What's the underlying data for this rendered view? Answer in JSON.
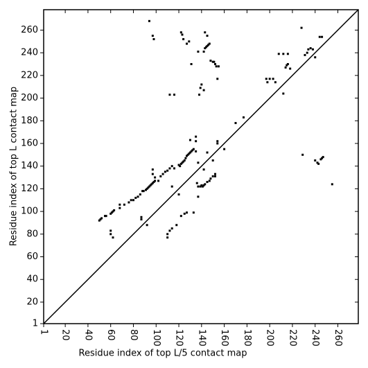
{
  "chart_data": {
    "type": "scatter",
    "xlabel": "Residue index of top L/5 contact map",
    "ylabel": "Residue index of top L contact map",
    "xlim": [
      1,
      278
    ],
    "ylim": [
      1,
      278
    ],
    "xticks": [
      1,
      20,
      40,
      60,
      80,
      100,
      120,
      140,
      160,
      180,
      200,
      220,
      240,
      260
    ],
    "yticks": [
      1,
      20,
      40,
      60,
      80,
      100,
      120,
      140,
      160,
      180,
      200,
      220,
      240,
      260
    ],
    "color": "#000000",
    "diagonal": true,
    "x": [
      50,
      51,
      52,
      55,
      56,
      60,
      61,
      62,
      63,
      60,
      60,
      62,
      68,
      68,
      72,
      76,
      78,
      80,
      82,
      84,
      86,
      88,
      89,
      91,
      92,
      93,
      94,
      95,
      96,
      97,
      98,
      99,
      97,
      97,
      99,
      102,
      104,
      106,
      108,
      110,
      112,
      114,
      116,
      87,
      87,
      92,
      110,
      110,
      112,
      114,
      118,
      114,
      120,
      125,
      122,
      127,
      133,
      120,
      121,
      122,
      123,
      124,
      125,
      126,
      127,
      128,
      129,
      130,
      131,
      132,
      133,
      130,
      135,
      135,
      135,
      137,
      142,
      145,
      150,
      154,
      154,
      160,
      170,
      177,
      136,
      137,
      137,
      139,
      140,
      141,
      142,
      143,
      145,
      147,
      148,
      150,
      152,
      152,
      138,
      139,
      140,
      142,
      112,
      116,
      131,
      137,
      142,
      143,
      144,
      145,
      146,
      147,
      148,
      150,
      151,
      152,
      153,
      154,
      155,
      143,
      145,
      122,
      123,
      124,
      127,
      129,
      97,
      98,
      94,
      197,
      200,
      203,
      205,
      198,
      208,
      212,
      216,
      212,
      214,
      215,
      216,
      218,
      228,
      231,
      233,
      234,
      236,
      238,
      240,
      244,
      246,
      229,
      240,
      242,
      243,
      245,
      246,
      247,
      255
    ],
    "y": [
      92,
      93,
      94,
      96,
      96,
      98,
      99,
      100,
      101,
      83,
      80,
      77,
      103,
      106,
      106,
      108,
      110,
      110,
      112,
      113,
      115,
      118,
      118,
      119,
      120,
      121,
      122,
      123,
      124,
      125,
      126,
      127,
      133,
      137,
      130,
      127,
      131,
      133,
      135,
      136,
      138,
      140,
      138,
      95,
      93,
      88,
      80,
      77,
      83,
      85,
      88,
      122,
      115,
      98,
      96,
      99,
      99,
      141,
      140,
      142,
      143,
      144,
      145,
      147,
      149,
      150,
      151,
      152,
      153,
      154,
      155,
      163,
      166,
      162,
      153,
      143,
      137,
      152,
      145,
      162,
      160,
      155,
      178,
      183,
      125,
      122,
      113,
      122,
      123,
      122,
      123,
      124,
      126,
      127,
      129,
      131,
      133,
      131,
      203,
      209,
      212,
      207,
      203,
      203,
      230,
      241,
      241,
      244,
      245,
      246,
      247,
      248,
      233,
      232,
      232,
      230,
      228,
      217,
      228,
      258,
      255,
      258,
      256,
      252,
      248,
      250,
      255,
      252,
      268,
      217,
      217,
      217,
      214,
      214,
      239,
      239,
      239,
      204,
      227,
      229,
      230,
      226,
      262,
      238,
      240,
      243,
      244,
      243,
      236,
      254,
      254,
      150,
      145,
      143,
      142,
      146,
      147,
      148,
      124
    ]
  }
}
